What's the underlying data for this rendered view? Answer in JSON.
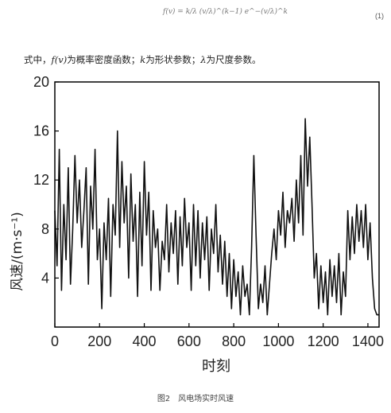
{
  "formula": {
    "lhs": "f(v) =",
    "rhs": "k/λ (v/λ)^(k−1) e^−(v/λ)^k",
    "number": "(1)"
  },
  "paragraph": {
    "prefix": "式中，",
    "fv": "f(v)",
    "t1": "为概率密度函数；",
    "k": "k",
    "t2": "为形状参数；",
    "lambda": "λ",
    "t3": "为尺度参数。"
  },
  "caption": "图2　风电场实时风速",
  "colors": {
    "line": "#111111",
    "axis": "#000000"
  },
  "chart_data": {
    "type": "line",
    "xlabel": "时刻",
    "ylabel": "风速/(m·s⁻¹)",
    "xlim": [
      0,
      1450
    ],
    "ylim": [
      0,
      20
    ],
    "xticks": [
      0,
      200,
      400,
      600,
      800,
      1000,
      1200,
      1400
    ],
    "yticks": [
      4,
      8,
      12,
      16,
      20
    ],
    "grid": false,
    "series": [
      {
        "x": [
          0,
          10,
          20,
          30,
          40,
          50,
          60,
          70,
          80,
          90,
          100,
          110,
          120,
          130,
          140,
          150,
          160,
          170,
          180,
          190,
          200,
          210,
          220,
          230,
          240,
          250,
          260,
          270,
          280,
          290,
          300,
          310,
          320,
          330,
          340,
          350,
          360,
          370,
          380,
          390,
          400,
          410,
          420,
          430,
          440,
          450,
          460,
          470,
          480,
          490,
          500,
          510,
          520,
          530,
          540,
          550,
          560,
          570,
          580,
          590,
          600,
          610,
          620,
          630,
          640,
          650,
          660,
          670,
          680,
          690,
          700,
          710,
          720,
          730,
          740,
          750,
          760,
          770,
          780,
          790,
          800,
          810,
          820,
          830,
          840,
          850,
          860,
          870,
          880,
          890,
          900,
          910,
          920,
          930,
          940,
          950,
          960,
          970,
          980,
          990,
          1000,
          1010,
          1020,
          1030,
          1040,
          1050,
          1060,
          1070,
          1080,
          1090,
          1100,
          1110,
          1120,
          1130,
          1140,
          1150,
          1160,
          1170,
          1180,
          1190,
          1200,
          1210,
          1220,
          1230,
          1240,
          1250,
          1260,
          1270,
          1280,
          1290,
          1300,
          1310,
          1320,
          1330,
          1340,
          1350,
          1360,
          1370,
          1380,
          1390,
          1400,
          1410,
          1420,
          1430,
          1440,
          1450
        ],
        "values": [
          9.5,
          5.0,
          14.5,
          3.0,
          10.0,
          5.5,
          13.0,
          3.5,
          8.0,
          14.0,
          8.5,
          12.0,
          6.5,
          9.5,
          13.0,
          3.5,
          11.5,
          8.0,
          14.5,
          5.5,
          8.0,
          1.5,
          8.5,
          5.5,
          10.5,
          2.5,
          10.0,
          7.5,
          16.0,
          6.5,
          13.5,
          8.5,
          11.5,
          4.0,
          12.5,
          7.0,
          10.0,
          2.5,
          11.0,
          5.0,
          13.5,
          7.5,
          11.0,
          3.0,
          9.5,
          6.5,
          8.0,
          3.0,
          7.0,
          5.5,
          10.0,
          4.5,
          8.5,
          6.0,
          9.5,
          3.5,
          9.0,
          5.0,
          10.5,
          6.5,
          8.5,
          3.0,
          10.0,
          5.0,
          9.5,
          4.0,
          8.5,
          5.5,
          9.0,
          3.0,
          8.0,
          6.0,
          10.0,
          4.5,
          7.5,
          3.5,
          7.0,
          2.5,
          6.0,
          1.5,
          5.5,
          2.5,
          4.5,
          1.0,
          5.0,
          2.5,
          3.5,
          1.0,
          6.5,
          14.0,
          7.5,
          1.5,
          3.5,
          2.0,
          5.0,
          1.0,
          3.5,
          6.0,
          8.0,
          5.5,
          9.5,
          7.5,
          11.0,
          6.5,
          9.5,
          8.5,
          10.5,
          7.0,
          12.0,
          8.5,
          14.0,
          7.5,
          17.0,
          11.5,
          15.5,
          10.0,
          4.0,
          6.0,
          1.5,
          5.0,
          2.0,
          4.5,
          1.0,
          5.5,
          2.5,
          5.0,
          2.0,
          6.0,
          1.0,
          4.5,
          2.5,
          9.5,
          5.5,
          9.0,
          6.0,
          10.0,
          7.0,
          9.5,
          6.5,
          10.0,
          5.5,
          8.5,
          4.0,
          1.5,
          1.0,
          1.0
        ]
      }
    ]
  }
}
